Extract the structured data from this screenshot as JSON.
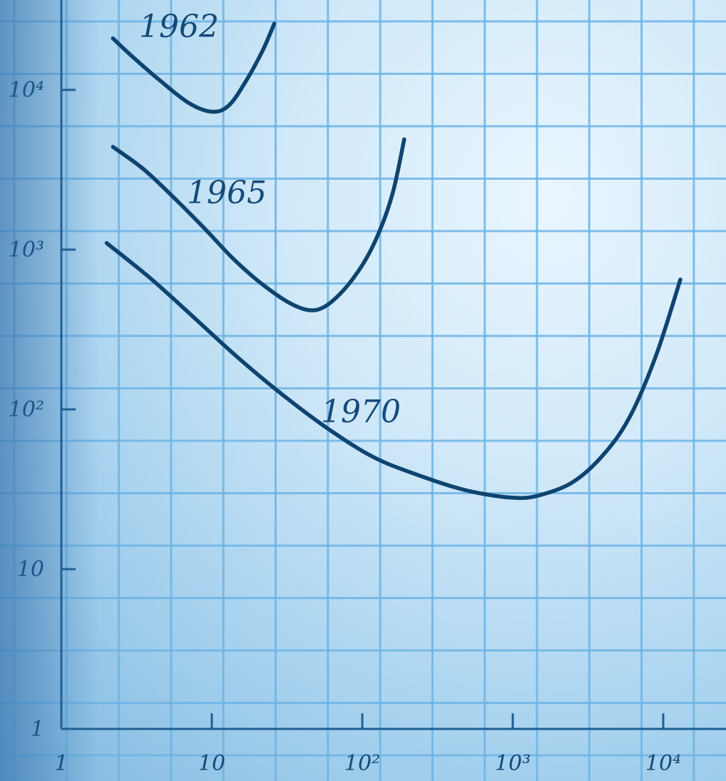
{
  "chart_data": {
    "type": "line",
    "title": "",
    "xlabel": "",
    "ylabel": "",
    "x_scale": "log",
    "y_scale": "log",
    "xlim": [
      1,
      15000
    ],
    "ylim": [
      1,
      30000
    ],
    "grid": true,
    "x_ticks": [
      {
        "value": 1,
        "label": "1"
      },
      {
        "value": 10,
        "label": "10"
      },
      {
        "value": 100,
        "label": "10²"
      },
      {
        "value": 1000,
        "label": "10³"
      },
      {
        "value": 10000,
        "label": "10⁴"
      }
    ],
    "y_ticks": [
      {
        "value": 1,
        "label": "1"
      },
      {
        "value": 10,
        "label": "10"
      },
      {
        "value": 100,
        "label": "10²"
      },
      {
        "value": 1000,
        "label": "10³"
      },
      {
        "value": 10000,
        "label": "10⁴"
      }
    ],
    "series": [
      {
        "name": "1962",
        "color": "#0f4470",
        "x": [
          2.2,
          3,
          4.5,
          7,
          10,
          13,
          17,
          22,
          26
        ],
        "y": [
          21000,
          16000,
          11500,
          8300,
          7300,
          8000,
          11500,
          18000,
          26000
        ]
      },
      {
        "name": "1965",
        "color": "#0f4470",
        "x": [
          2.2,
          3.5,
          5.5,
          9,
          14,
          22,
          35,
          50,
          70,
          100,
          130,
          160,
          190
        ],
        "y": [
          4400,
          3200,
          2150,
          1350,
          870,
          600,
          450,
          420,
          520,
          800,
          1300,
          2300,
          4900
        ]
      },
      {
        "name": "1970",
        "color": "#0f4470",
        "x": [
          2,
          4,
          8,
          15,
          30,
          60,
          120,
          250,
          500,
          1000,
          1500,
          2500,
          4000,
          6000,
          9000,
          13000
        ],
        "y": [
          1100,
          650,
          360,
          210,
          122,
          75,
          50,
          38,
          31,
          28,
          29,
          35,
          52,
          90,
          220,
          650
        ]
      }
    ]
  }
}
